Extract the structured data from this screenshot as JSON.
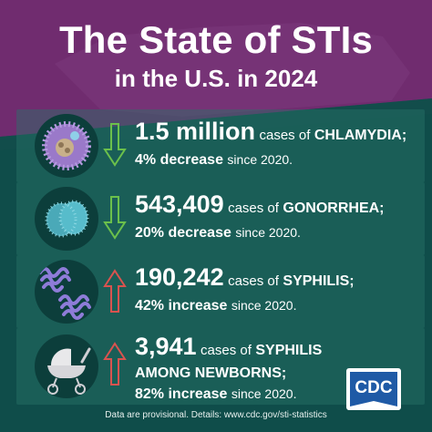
{
  "title": {
    "line1": "The State of STIs",
    "line2": "in the U.S. in 2024"
  },
  "stats": [
    {
      "icon": "chlamydia-icon",
      "trend": "down",
      "number": "1.5 million",
      "mid": "cases of",
      "disease": "CHLAMYDIA;",
      "change": "4% decrease",
      "since": "since 2020."
    },
    {
      "icon": "gonorrhea-icon",
      "trend": "down",
      "number": "543,409",
      "mid": "cases of",
      "disease": "GONORRHEA;",
      "change": "20% decrease",
      "since": "since 2020."
    },
    {
      "icon": "syphilis-icon",
      "trend": "up",
      "number": "190,242",
      "mid": "cases of",
      "disease": "SYPHILIS;",
      "change": "42% increase",
      "since": "since 2020."
    },
    {
      "icon": "stroller-icon",
      "trend": "up",
      "number": "3,941",
      "mid": "cases of",
      "disease": "SYPHILIS",
      "disease2": "AMONG NEWBORNS;",
      "change": "82% increase",
      "since": "since 2020."
    }
  ],
  "footer": "Data are provisional. Details: www.cdc.gov/sti-statistics",
  "logo": {
    "text": "CDC"
  },
  "colors": {
    "purple": "#702c6f",
    "teal": "#0f4d4a",
    "arrow_down": "#6bc04b",
    "arrow_up": "#d9534f"
  }
}
